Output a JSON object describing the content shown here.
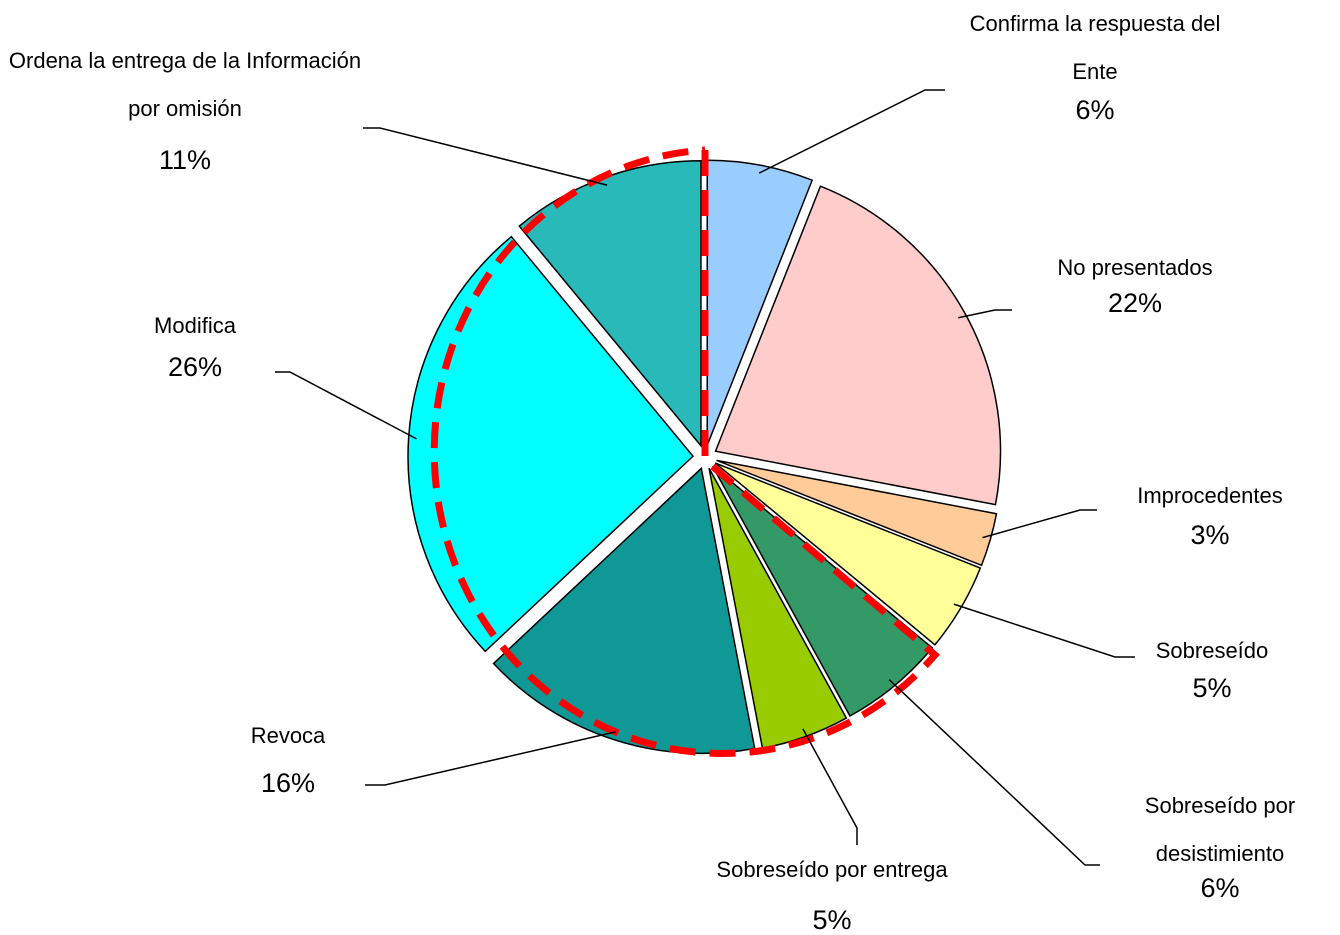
{
  "chart_data": {
    "type": "pie",
    "categories": [
      "Confirma la respuesta del Ente",
      "No presentados",
      "Improcedentes",
      "Sobreseído",
      "Sobreseído por desistimiento",
      "Sobreseído por entrega",
      "Revoca",
      "Modifica",
      "Ordena la entrega de la Información por omisión"
    ],
    "values": [
      6,
      22,
      3,
      5,
      6,
      5,
      16,
      26,
      11
    ],
    "value_labels": [
      "6%",
      "22%",
      "3%",
      "5%",
      "6%",
      "5%",
      "16%",
      "26%",
      "11%"
    ],
    "colors": [
      "#99ccff",
      "#ffcccc",
      "#ffcc99",
      "#ffff99",
      "#339966",
      "#99cc00",
      "#109896",
      "#00ffff",
      "#2ab9b9"
    ]
  }
}
